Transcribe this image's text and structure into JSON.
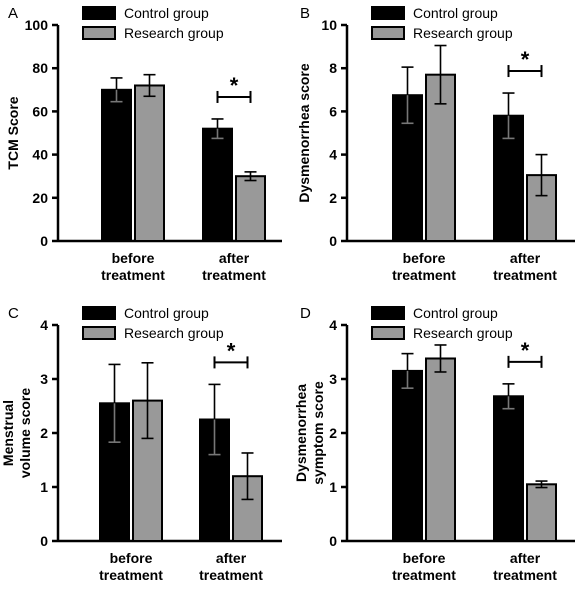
{
  "chart_data": [
    {
      "panel": "A",
      "type": "bar",
      "categories": [
        "before treatment",
        "after treatment"
      ],
      "ylabel": "TCM Score",
      "ylim": [
        0,
        100
      ],
      "yticks": [
        0,
        20,
        40,
        60,
        80,
        100
      ],
      "series": [
        {
          "name": "Control group",
          "values": [
            70,
            52
          ],
          "errors": [
            5.5,
            4.5
          ],
          "color": "#000000"
        },
        {
          "name": "Research group",
          "values": [
            72,
            30
          ],
          "errors": [
            5,
            2
          ],
          "color": "#999999"
        }
      ],
      "significance": [
        {
          "category": 1,
          "label": "*"
        }
      ]
    },
    {
      "panel": "B",
      "type": "bar",
      "categories": [
        "before treatment",
        "after treatment"
      ],
      "ylabel": "Dysmenorrhea score",
      "ylim": [
        0,
        10
      ],
      "yticks": [
        0,
        2,
        4,
        6,
        8,
        10
      ],
      "series": [
        {
          "name": "Control group",
          "values": [
            6.75,
            5.8
          ],
          "errors": [
            1.3,
            1.05
          ],
          "color": "#000000"
        },
        {
          "name": "Research group",
          "values": [
            7.7,
            3.05
          ],
          "errors": [
            1.35,
            0.95
          ],
          "color": "#999999"
        }
      ],
      "significance": [
        {
          "category": 1,
          "label": "*"
        }
      ]
    },
    {
      "panel": "C",
      "type": "bar",
      "categories": [
        "before treatment",
        "after treatment"
      ],
      "ylabel": "Menstrual volume score",
      "ylim": [
        0,
        4
      ],
      "yticks": [
        0,
        1,
        2,
        3,
        4
      ],
      "series": [
        {
          "name": "Control group",
          "values": [
            2.55,
            2.25
          ],
          "errors": [
            0.72,
            0.65
          ],
          "color": "#000000"
        },
        {
          "name": "Research group",
          "values": [
            2.6,
            1.2
          ],
          "errors": [
            0.7,
            0.43
          ],
          "color": "#999999"
        }
      ],
      "significance": [
        {
          "category": 1,
          "label": "*"
        }
      ]
    },
    {
      "panel": "D",
      "type": "bar",
      "categories": [
        "before treatment",
        "after treatment"
      ],
      "ylabel": "Dysmenorrhea symptom score",
      "ylim": [
        0,
        4
      ],
      "yticks": [
        0,
        1,
        2,
        3,
        4
      ],
      "series": [
        {
          "name": "Control group",
          "values": [
            3.15,
            2.68
          ],
          "errors": [
            0.32,
            0.23
          ],
          "color": "#000000"
        },
        {
          "name": "Research group",
          "values": [
            3.38,
            1.05
          ],
          "errors": [
            0.25,
            0.06
          ],
          "color": "#999999"
        }
      ],
      "significance": [
        {
          "category": 1,
          "label": "*"
        }
      ]
    }
  ]
}
